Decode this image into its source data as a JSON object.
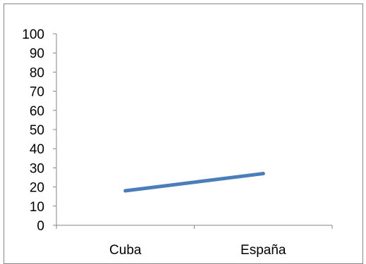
{
  "chart_data": {
    "type": "line",
    "categories": [
      "Cuba",
      "España"
    ],
    "series": [
      {
        "values": [
          18,
          27
        ],
        "color": "#4a7ebb"
      }
    ],
    "yticks": [
      "0",
      "10",
      "20",
      "30",
      "40",
      "50",
      "60",
      "70",
      "80",
      "90",
      "100"
    ],
    "ylim": [
      0,
      100
    ],
    "grid": false,
    "legend": "none"
  }
}
